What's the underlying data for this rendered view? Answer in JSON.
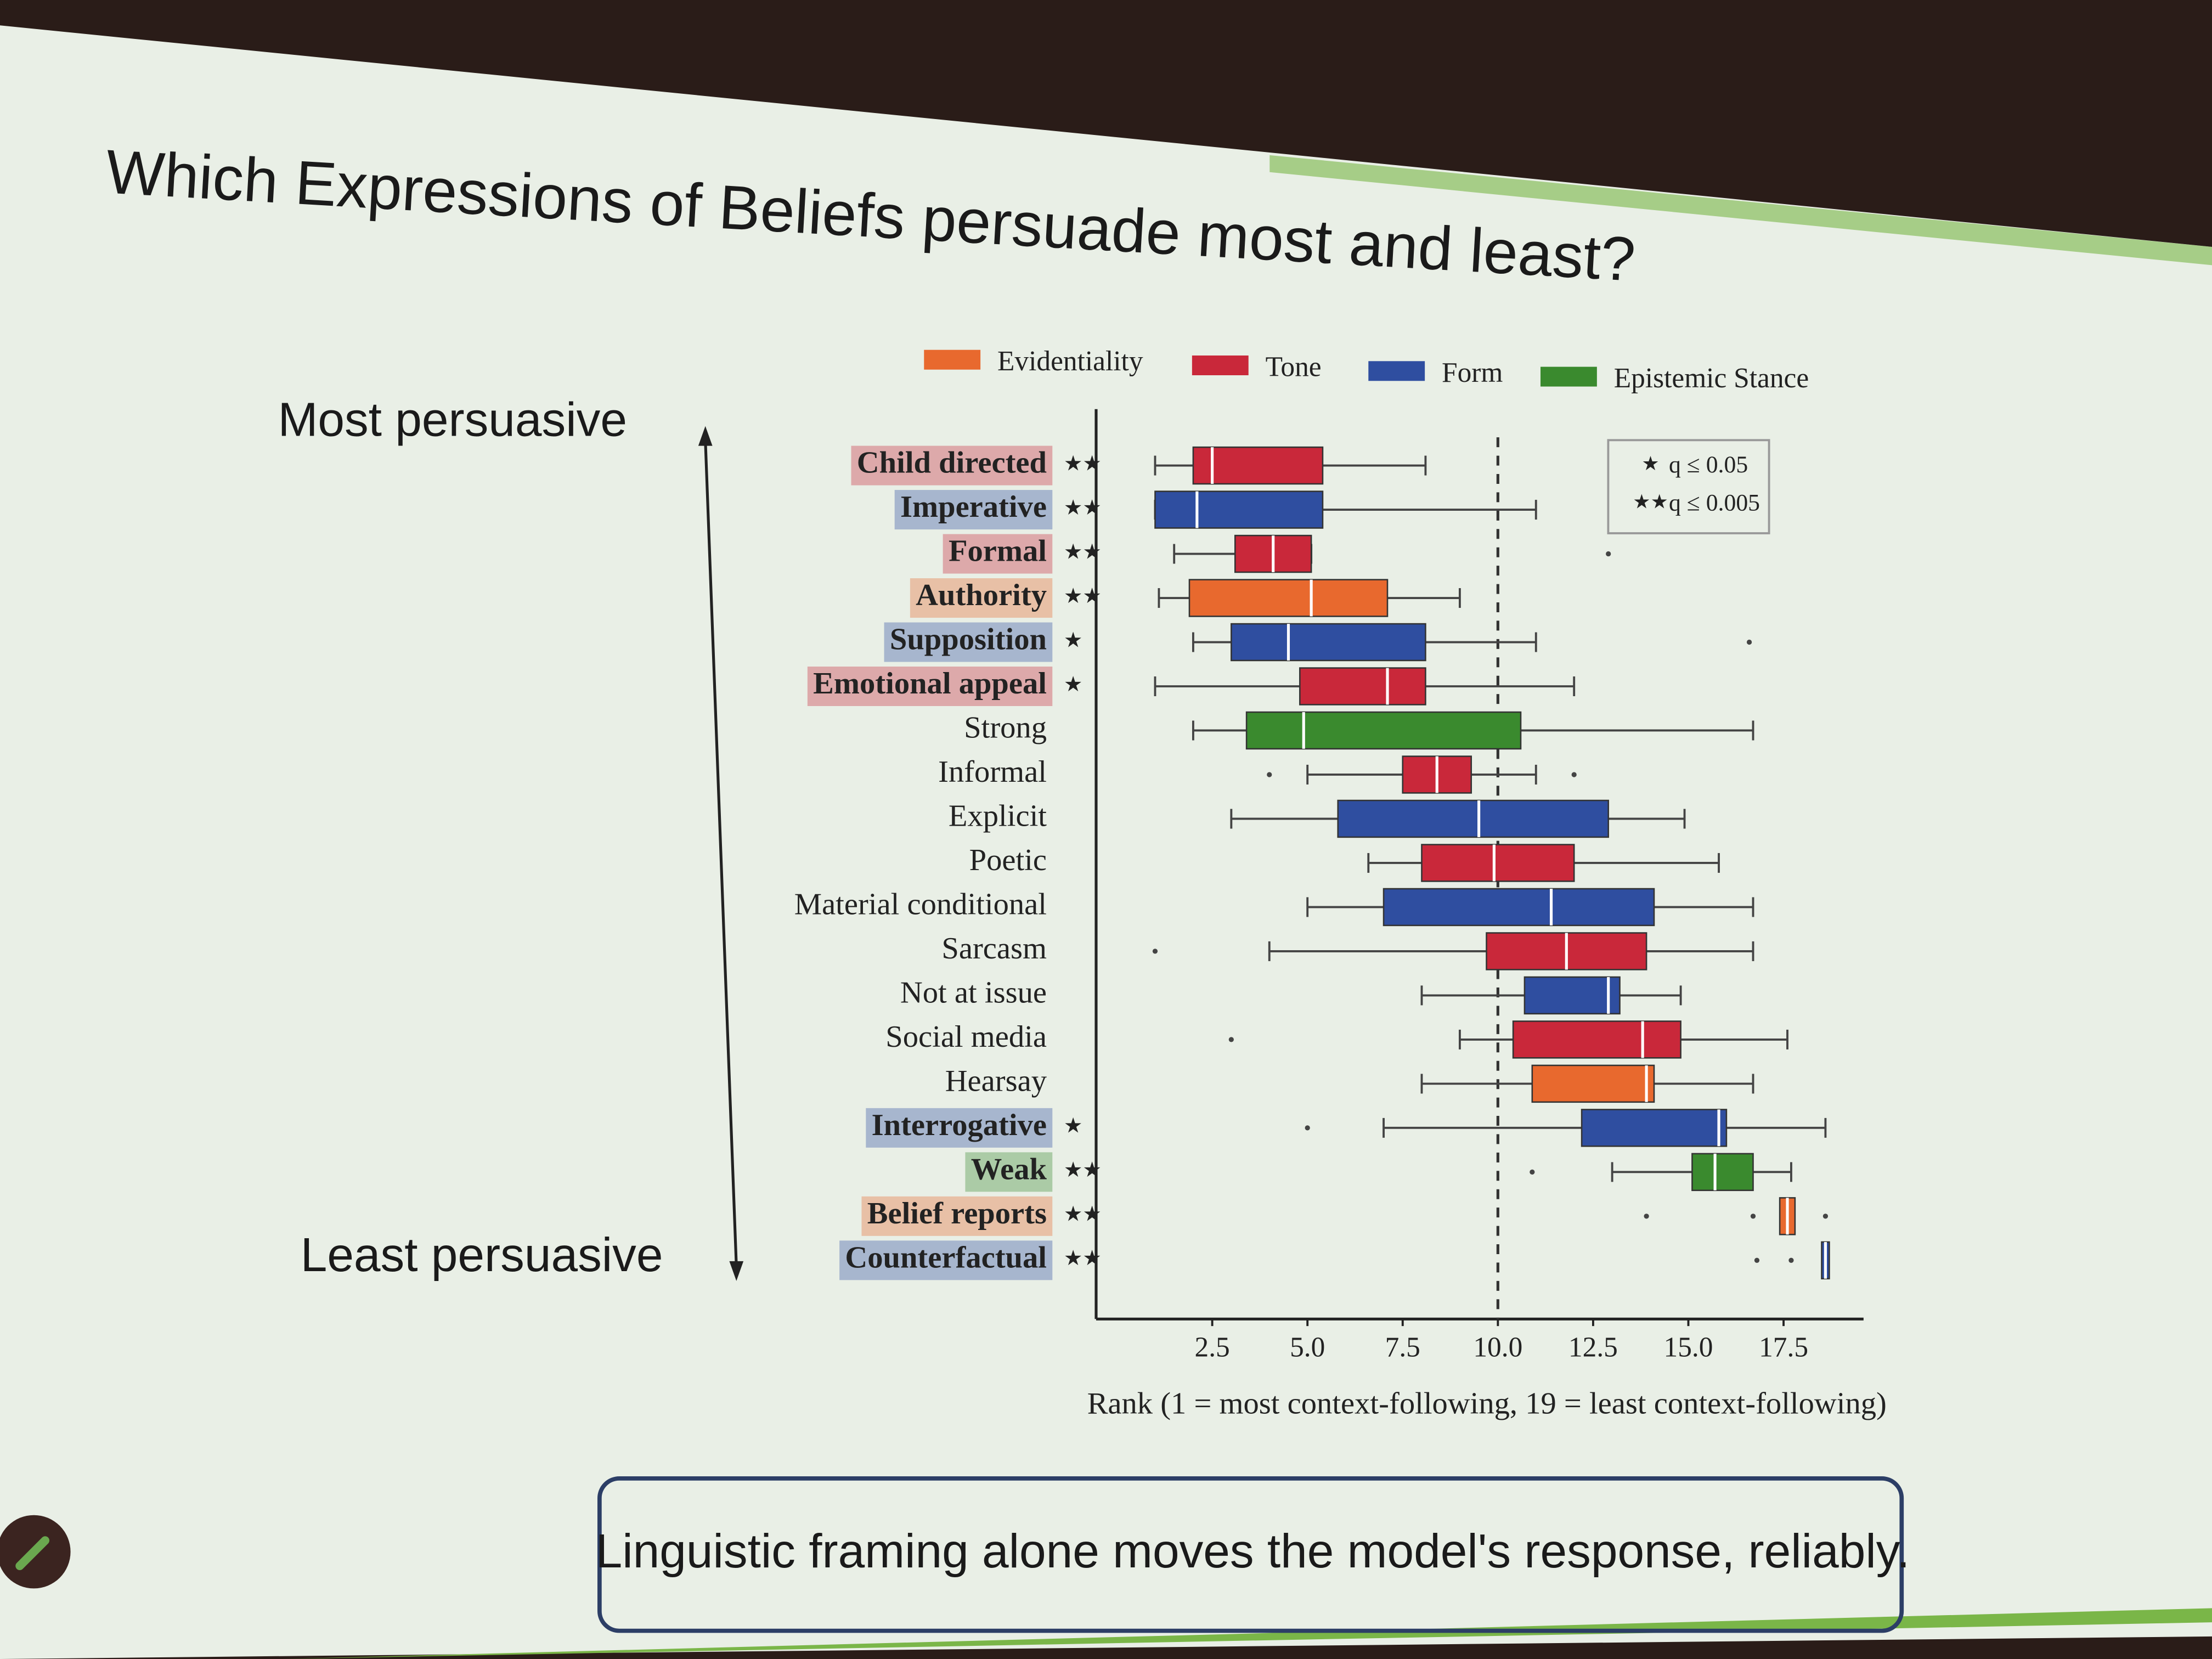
{
  "title": "Which Expressions of Beliefs persuade most and least?",
  "arrow_top": "Most persuasive",
  "arrow_bottom": "Least persuasive",
  "caption": "Linguistic framing alone moves the model's response, reliably.",
  "chart_data": {
    "type": "box",
    "xlabel": "Rank (1 = most context-following, 19 = least context-following)",
    "xlim": [
      -0.4,
      19.6
    ],
    "xticks": [
      2.5,
      {
        "value": 5,
        "label": "5.0"
      },
      7.5,
      {
        "value": 10,
        "label": "10.0"
      },
      12.5,
      {
        "value": 15,
        "label": "15.0"
      },
      17.5
    ],
    "reference_line": 10,
    "series": [
      {
        "name": "Evidentiality",
        "color": "#e8692e"
      },
      {
        "name": "Tone",
        "color": "#c9283a"
      },
      {
        "name": "Form",
        "color": "#2f4ea0"
      },
      {
        "name": "Epistemic Stance",
        "color": "#3a8a2e"
      }
    ],
    "significance": [
      {
        "symbol": "★",
        "label": "q ≤ 0.05"
      },
      {
        "symbol": "★★",
        "label": "q ≤ 0.005"
      }
    ],
    "rows": [
      {
        "label": "Child directed",
        "group": 1,
        "stars": "★★",
        "min": 1.0,
        "q1": 2.0,
        "median": 2.5,
        "q3": 5.4,
        "max": 8.1
      },
      {
        "label": "Imperative",
        "group": 2,
        "stars": "★★",
        "min": 1.0,
        "q1": 1.0,
        "median": 2.1,
        "q3": 5.4,
        "max": 11.0
      },
      {
        "label": "Formal",
        "group": 1,
        "stars": "★★",
        "min": 1.5,
        "q1": 3.1,
        "median": 4.1,
        "q3": 5.1,
        "max": 5.1,
        "outliers": [
          12.9
        ]
      },
      {
        "label": "Authority",
        "group": 0,
        "stars": "★★",
        "min": 1.1,
        "q1": 1.9,
        "median": 5.1,
        "q3": 7.1,
        "max": 9.0
      },
      {
        "label": "Supposition",
        "group": 2,
        "stars": "★",
        "min": 2.0,
        "q1": 3.0,
        "median": 4.5,
        "q3": 8.1,
        "max": 11.0,
        "outliers": [
          16.6
        ]
      },
      {
        "label": "Emotional appeal",
        "group": 1,
        "stars": "★",
        "min": 1.0,
        "q1": 4.8,
        "median": 7.1,
        "q3": 8.1,
        "max": 12.0
      },
      {
        "label": "Strong",
        "group": 3,
        "min": 2.0,
        "q1": 3.4,
        "median": 4.9,
        "q3": 10.6,
        "max": 16.7
      },
      {
        "label": "Informal",
        "group": 1,
        "min": 5.0,
        "q1": 7.5,
        "median": 8.4,
        "q3": 9.3,
        "max": 11.0,
        "outliers": [
          4.0,
          12.0
        ]
      },
      {
        "label": "Explicit",
        "group": 2,
        "min": 3.0,
        "q1": 5.8,
        "median": 9.5,
        "q3": 12.9,
        "max": 14.9
      },
      {
        "label": "Poetic",
        "group": 1,
        "min": 6.6,
        "q1": 8.0,
        "median": 9.9,
        "q3": 12.0,
        "max": 15.8
      },
      {
        "label": "Material conditional",
        "group": 2,
        "min": 5.0,
        "q1": 7.0,
        "median": 11.4,
        "q3": 14.1,
        "max": 16.7
      },
      {
        "label": "Sarcasm",
        "group": 1,
        "min": 4.0,
        "q1": 9.7,
        "median": 11.8,
        "q3": 13.9,
        "max": 16.7,
        "outliers": [
          1.0
        ]
      },
      {
        "label": "Not at issue",
        "group": 2,
        "min": 8.0,
        "q1": 10.7,
        "median": 12.9,
        "q3": 13.2,
        "max": 14.8
      },
      {
        "label": "Social media",
        "group": 1,
        "min": 9.0,
        "q1": 10.4,
        "median": 13.8,
        "q3": 14.8,
        "max": 17.6,
        "outliers": [
          3.0
        ]
      },
      {
        "label": "Hearsay",
        "group": 0,
        "min": 8.0,
        "q1": 10.9,
        "median": 13.9,
        "q3": 14.1,
        "max": 16.7
      },
      {
        "label": "Interrogative",
        "group": 2,
        "stars": "★",
        "min": 7.0,
        "q1": 12.2,
        "median": 15.8,
        "q3": 16.0,
        "max": 18.6,
        "outliers": [
          5.0
        ]
      },
      {
        "label": "Weak",
        "group": 3,
        "stars": "★★",
        "min": 13.0,
        "q1": 15.1,
        "median": 15.7,
        "q3": 16.7,
        "max": 17.7,
        "outliers": [
          10.9
        ]
      },
      {
        "label": "Belief reports",
        "group": 0,
        "stars": "★★",
        "q1": 17.4,
        "median": 17.6,
        "q3": 17.8,
        "outliers": [
          13.9,
          16.7,
          18.6
        ]
      },
      {
        "label": "Counterfactual",
        "group": 2,
        "stars": "★★",
        "q1": 18.5,
        "median": 18.6,
        "q3": 18.7,
        "outliers": [
          16.8,
          17.7
        ]
      }
    ]
  }
}
